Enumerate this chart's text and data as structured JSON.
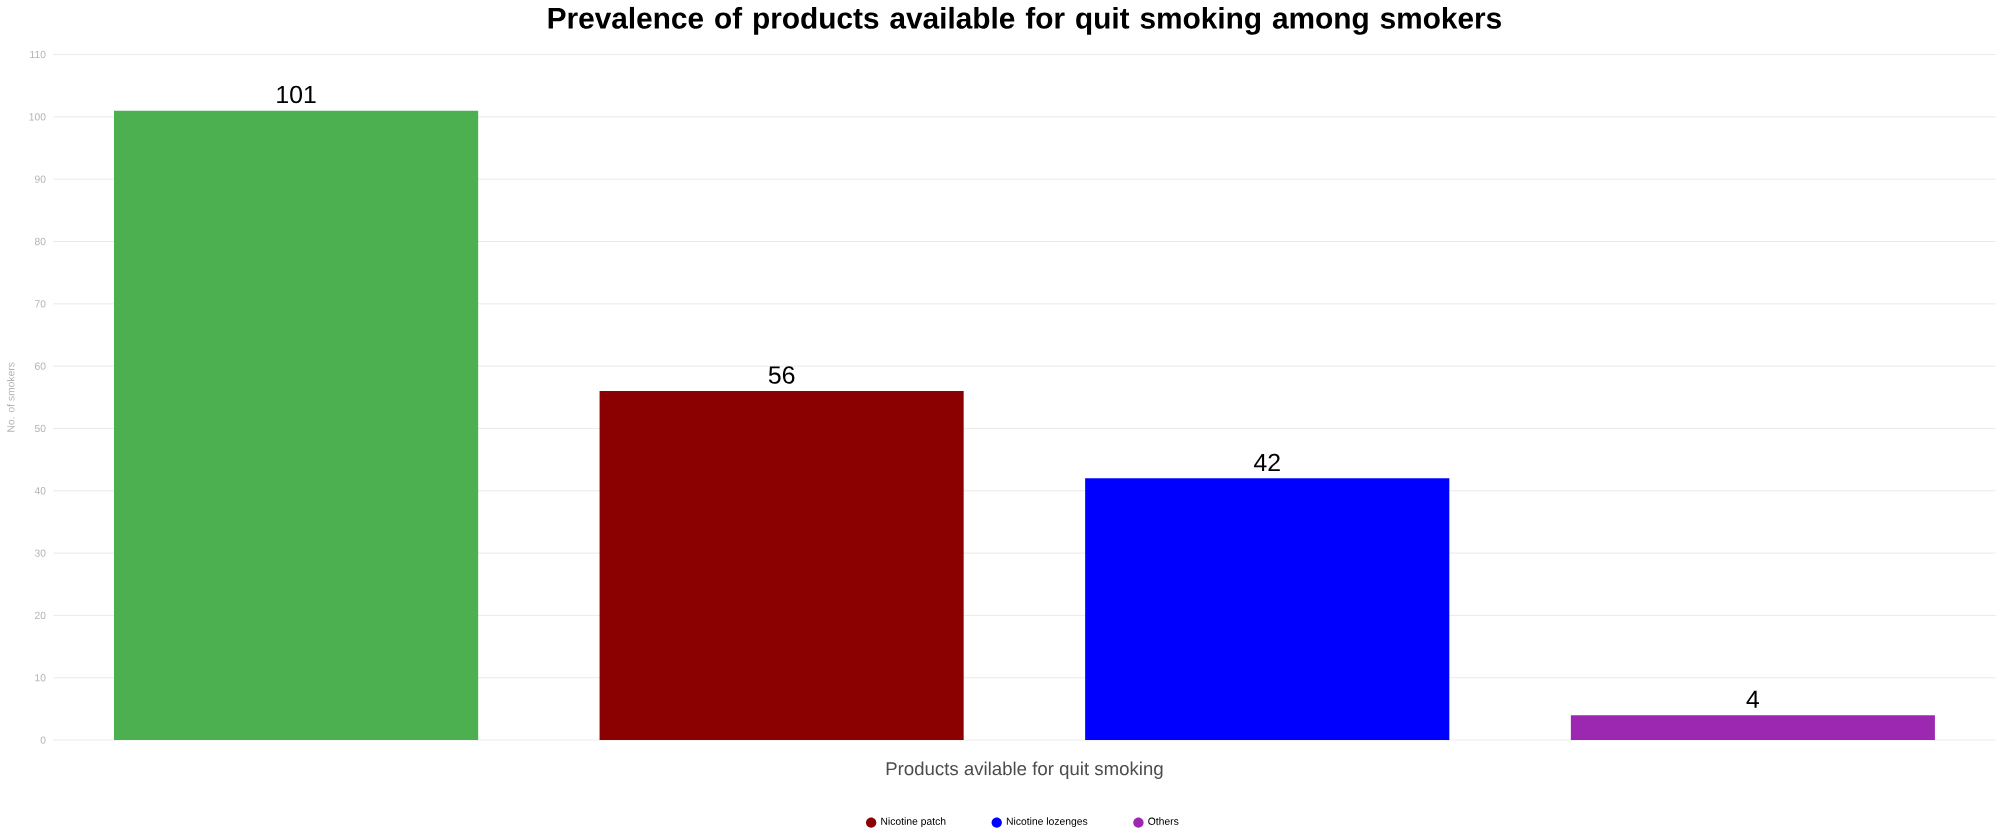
{
  "chart_data": {
    "type": "bar",
    "title": "Prevalence of products available for quit smoking among smokers",
    "xlabel": "Products avilable for quit smoking",
    "ylabel": "No. of smokers",
    "categories": [
      null,
      null,
      null,
      null
    ],
    "series": [
      {
        "color": "#4caf50",
        "values": [
          101,
          null,
          null,
          null
        ]
      },
      {
        "name": "Nicotine patch",
        "color": "#8b0000",
        "values": [
          null,
          56,
          null,
          null
        ]
      },
      {
        "name": "Nicotine lozenges",
        "color": "#0000ff",
        "values": [
          null,
          null,
          42,
          null
        ]
      },
      {
        "name": "Others",
        "color": "#9c27b0",
        "values": [
          null,
          null,
          null,
          4
        ]
      }
    ],
    "ylim": [
      0,
      110
    ],
    "yticks": [
      0,
      10,
      20,
      30,
      40,
      50,
      60,
      70,
      80,
      90,
      100,
      110
    ],
    "grid": "y",
    "legend": "bottom",
    "data_labels": true
  }
}
